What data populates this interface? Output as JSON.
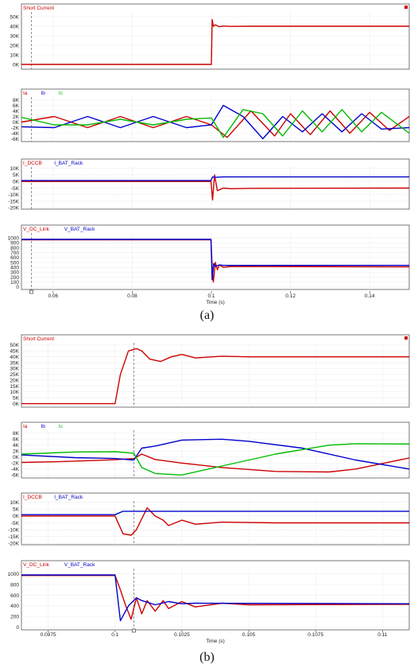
{
  "figures": [
    {
      "caption": "(a)",
      "xlim": [
        0.052,
        0.15
      ],
      "xticks": [
        0.06,
        0.08,
        0.1,
        0.12,
        0.14
      ],
      "xtick_labels": [
        "0.06",
        "0.08",
        "0.1",
        "0.12",
        "0.14"
      ],
      "xlabel": "Time (s)",
      "cursor_x": 0.0545,
      "event_x": 0.1,
      "panels": [
        {
          "id": "a1",
          "legend": [
            {
              "label": "Short Current",
              "color": "#cc0000"
            }
          ],
          "ylim": [
            -5000,
            55000
          ],
          "yticks": [
            0,
            10000,
            20000,
            30000,
            40000,
            50000
          ],
          "ytick_labels": [
            "0K",
            "10K",
            "20K",
            "30K",
            "40K",
            "50K"
          ],
          "marker": true
        },
        {
          "id": "a2",
          "legend": [
            {
              "label": "Ia",
              "color": "#cc0000"
            },
            {
              "label": "Ib",
              "color": "#0000cc"
            },
            {
              "label": "Ic",
              "color": "#00bb00"
            }
          ],
          "ylim": [
            -7000,
            9000
          ],
          "yticks": [
            -6000,
            -4000,
            -2000,
            0,
            2000,
            4000,
            6000,
            8000
          ],
          "ytick_labels": [
            "-6K",
            "-4K",
            "-2K",
            "0K",
            "2K",
            "4K",
            "6K",
            "8K"
          ],
          "marker": false
        },
        {
          "id": "a3",
          "legend": [
            {
              "label": "I_DCCB",
              "color": "#cc0000"
            },
            {
              "label": "I_BAT_Rack",
              "color": "#0000cc"
            }
          ],
          "ylim": [
            -21000,
            11000
          ],
          "yticks": [
            -20000,
            -15000,
            -10000,
            -5000,
            0,
            5000,
            10000
          ],
          "ytick_labels": [
            "-20K",
            "-15K",
            "-10K",
            "-5K",
            "0K",
            "5K",
            "10K"
          ],
          "marker": false
        },
        {
          "id": "a4",
          "legend": [
            {
              "label": "V_DC_Link",
              "color": "#cc0000"
            },
            {
              "label": "V_BAT_Rack",
              "color": "#0000cc"
            }
          ],
          "ylim": [
            -50,
            1100
          ],
          "yticks": [
            0,
            100,
            200,
            300,
            400,
            500,
            600,
            700,
            800,
            900,
            1000
          ],
          "ytick_labels": [
            "0",
            "100",
            "200",
            "300",
            "400",
            "500",
            "600",
            "700",
            "800",
            "900",
            "1000"
          ],
          "marker": false
        }
      ]
    },
    {
      "caption": "(b)",
      "xlim": [
        0.0965,
        0.111
      ],
      "xticks": [
        0.0975,
        0.1,
        0.1025,
        0.105,
        0.1075,
        0.11
      ],
      "xtick_labels": [
        "0.0975",
        "0.1",
        "0.1025",
        "0.105",
        "0.1075",
        "0.11"
      ],
      "xlabel": "Time (s)",
      "cursor_x": 0.1007,
      "event_x": 0.1,
      "panels": [
        {
          "id": "b1",
          "legend": [
            {
              "label": "Short Current",
              "color": "#cc0000"
            }
          ],
          "ylim": [
            -3000,
            52000
          ],
          "yticks": [
            0,
            5000,
            10000,
            15000,
            20000,
            25000,
            30000,
            35000,
            40000,
            45000,
            50000
          ],
          "ytick_labels": [
            "0K",
            "5K",
            "10K",
            "15K",
            "20K",
            "25K",
            "30K",
            "35K",
            "40K",
            "45K",
            "50K"
          ],
          "marker": true
        },
        {
          "id": "b2",
          "legend": [
            {
              "label": "Ia",
              "color": "#cc0000"
            },
            {
              "label": "Ib",
              "color": "#0000cc"
            },
            {
              "label": "Ic",
              "color": "#00bb00"
            }
          ],
          "ylim": [
            -7000,
            9000
          ],
          "yticks": [
            -6000,
            -4000,
            -2000,
            0,
            2000,
            4000,
            6000,
            8000
          ],
          "ytick_labels": [
            "-6K",
            "-4K",
            "-2K",
            "0K",
            "2K",
            "4K",
            "6K",
            "8K"
          ],
          "marker": false
        },
        {
          "id": "b3",
          "legend": [
            {
              "label": "I_DCCB",
              "color": "#cc0000"
            },
            {
              "label": "I_BAT_Rack",
              "color": "#0000cc"
            }
          ],
          "ylim": [
            -21000,
            11000
          ],
          "yticks": [
            -20000,
            -15000,
            -10000,
            -5000,
            0,
            5000,
            10000
          ],
          "ytick_labels": [
            "-20K",
            "-15K",
            "-10K",
            "-5K",
            "0K",
            "5K",
            "10K"
          ],
          "marker": false
        },
        {
          "id": "b4",
          "legend": [
            {
              "label": "V_DC_Link",
              "color": "#cc0000"
            },
            {
              "label": "V_BAT_Rack",
              "color": "#0000cc"
            }
          ],
          "ylim": [
            -50,
            1100
          ],
          "yticks": [
            0,
            200,
            400,
            600,
            800,
            1000
          ],
          "ytick_labels": [
            "0",
            "200",
            "400",
            "600",
            "800",
            "1000"
          ],
          "marker": false
        }
      ]
    }
  ],
  "chart_data": [
    {
      "type": "line",
      "title": "Short Current",
      "xlabel": "Time (s)",
      "ylabel": "",
      "xlim": [
        0.052,
        0.15
      ],
      "ylim": [
        -5000,
        55000
      ],
      "series": [
        {
          "name": "Short Current",
          "color": "#cc0000",
          "x": [
            0.052,
            0.0999,
            0.1,
            0.1002,
            0.1005,
            0.101,
            0.102,
            0.103,
            0.105,
            0.11,
            0.15
          ],
          "y": [
            0,
            0,
            0,
            47000,
            40000,
            41500,
            39500,
            40200,
            39800,
            40000,
            40000
          ]
        }
      ]
    },
    {
      "type": "line",
      "title": "",
      "xlabel": "Time (s)",
      "ylabel": "",
      "xlim": [
        0.052,
        0.15
      ],
      "ylim": [
        -7000,
        9000
      ],
      "series": [
        {
          "name": "Ia",
          "color": "#cc0000",
          "x": [
            0.052,
            0.0603,
            0.0687,
            0.077,
            0.0853,
            0.0937,
            0.1,
            0.104,
            0.11,
            0.116,
            0.12,
            0.125,
            0.13,
            0.135,
            0.14,
            0.145,
            0.15
          ],
          "y": [
            0,
            2000,
            -2000,
            2000,
            -2000,
            2000,
            -1000,
            -5500,
            4000,
            -5000,
            3000,
            -4500,
            4000,
            -4000,
            3500,
            -3000,
            2000
          ]
        },
        {
          "name": "Ib",
          "color": "#0000cc",
          "x": [
            0.052,
            0.0603,
            0.0687,
            0.077,
            0.0853,
            0.0937,
            0.1,
            0.103,
            0.108,
            0.113,
            0.118,
            0.123,
            0.128,
            0.133,
            0.138,
            0.143,
            0.15
          ],
          "y": [
            -1700,
            -2000,
            2000,
            -2000,
            2000,
            -2000,
            -1000,
            6000,
            2000,
            -6000,
            2000,
            -3500,
            3000,
            -3500,
            3000,
            -2500,
            -2000
          ]
        },
        {
          "name": "Ic",
          "color": "#00bb00",
          "x": [
            0.052,
            0.0603,
            0.0687,
            0.077,
            0.0853,
            0.0937,
            0.1,
            0.103,
            0.108,
            0.113,
            0.118,
            0.123,
            0.128,
            0.133,
            0.138,
            0.143,
            0.15
          ],
          "y": [
            1700,
            -1000,
            -1000,
            1000,
            -1000,
            1000,
            1500,
            -5500,
            4500,
            3000,
            -5000,
            4000,
            -3500,
            4500,
            -3500,
            3500,
            -4000
          ]
        }
      ]
    },
    {
      "type": "line",
      "title": "",
      "xlabel": "Time (s)",
      "ylabel": "",
      "xlim": [
        0.052,
        0.15
      ],
      "ylim": [
        -21000,
        11000
      ],
      "series": [
        {
          "name": "I_DCCB",
          "color": "#cc0000",
          "x": [
            0.052,
            0.0999,
            0.1003,
            0.1008,
            0.1015,
            0.103,
            0.105,
            0.11,
            0.15
          ],
          "y": [
            0,
            0,
            -14000,
            5000,
            -7000,
            -5000,
            -5500,
            -5200,
            -5000
          ]
        },
        {
          "name": "I_BAT_Rack",
          "color": "#0000cc",
          "x": [
            0.052,
            0.0999,
            0.1003,
            0.101,
            0.103,
            0.15
          ],
          "y": [
            700,
            700,
            3500,
            3200,
            3500,
            3500
          ]
        }
      ]
    },
    {
      "type": "line",
      "title": "",
      "xlabel": "Time (s)",
      "ylabel": "",
      "xlim": [
        0.052,
        0.15
      ],
      "ylim": [
        -50,
        1100
      ],
      "series": [
        {
          "name": "V_DC_Link",
          "color": "#cc0000",
          "x": [
            0.052,
            0.0999,
            0.1002,
            0.1005,
            0.101,
            0.1015,
            0.102,
            0.103,
            0.105,
            0.15
          ],
          "y": [
            960,
            960,
            400,
            100,
            500,
            350,
            450,
            400,
            420,
            410
          ]
        },
        {
          "name": "V_BAT_Rack",
          "color": "#0000cc",
          "x": [
            0.052,
            0.0999,
            0.1002,
            0.1006,
            0.101,
            0.102,
            0.103,
            0.15
          ],
          "y": [
            970,
            970,
            150,
            480,
            420,
            450,
            440,
            440
          ]
        }
      ]
    },
    {
      "type": "line",
      "title": "Short Current",
      "xlabel": "Time (s)",
      "ylabel": "",
      "xlim": [
        0.0965,
        0.111
      ],
      "ylim": [
        -3000,
        52000
      ],
      "series": [
        {
          "name": "Short Current",
          "color": "#cc0000",
          "x": [
            0.0965,
            0.1,
            0.1002,
            0.1005,
            0.1008,
            0.101,
            0.1013,
            0.1017,
            0.1021,
            0.1025,
            0.103,
            0.104,
            0.105,
            0.111
          ],
          "y": [
            0,
            0,
            25000,
            45000,
            47000,
            45000,
            38000,
            36000,
            40000,
            42000,
            39000,
            40500,
            40000,
            40000
          ]
        }
      ]
    },
    {
      "type": "line",
      "title": "",
      "xlabel": "Time (s)",
      "ylabel": "",
      "xlim": [
        0.0965,
        0.111
      ],
      "ylim": [
        -7000,
        9000
      ],
      "series": [
        {
          "name": "Ia",
          "color": "#cc0000",
          "x": [
            0.0965,
            0.098,
            0.099,
            0.1,
            0.1007,
            0.101,
            0.1015,
            0.1025,
            0.104,
            0.106,
            0.108,
            0.109,
            0.111
          ],
          "y": [
            -1800,
            -1500,
            -1200,
            -900,
            -500,
            1000,
            -800,
            -2000,
            -3500,
            -4800,
            -5000,
            -4000,
            -300
          ]
        },
        {
          "name": "Ib",
          "color": "#0000cc",
          "x": [
            0.0965,
            0.0985,
            0.1,
            0.1007,
            0.101,
            0.1015,
            0.1025,
            0.104,
            0.105,
            0.107,
            0.109,
            0.111
          ],
          "y": [
            700,
            -200,
            -500,
            -1000,
            3000,
            3700,
            5700,
            6000,
            5300,
            3000,
            -1000,
            -4000
          ]
        },
        {
          "name": "Ic",
          "color": "#00bb00",
          "x": [
            0.0965,
            0.0985,
            0.1,
            0.1007,
            0.101,
            0.1015,
            0.1025,
            0.104,
            0.106,
            0.108,
            0.109,
            0.111
          ],
          "y": [
            1000,
            1700,
            1800,
            1300,
            -3500,
            -5500,
            -6000,
            -3000,
            1000,
            4000,
            4500,
            4400
          ]
        }
      ]
    },
    {
      "type": "line",
      "title": "",
      "xlabel": "Time (s)",
      "ylabel": "",
      "xlim": [
        0.0965,
        0.111
      ],
      "ylim": [
        -21000,
        11000
      ],
      "series": [
        {
          "name": "I_DCCB",
          "color": "#cc0000",
          "x": [
            0.0965,
            0.1,
            0.1003,
            0.1006,
            0.1008,
            0.101,
            0.1012,
            0.1015,
            0.1018,
            0.102,
            0.1025,
            0.103,
            0.104,
            0.106,
            0.111
          ],
          "y": [
            0,
            0,
            -13000,
            -14000,
            -10000,
            -2000,
            6000,
            0,
            -3000,
            -7000,
            -3000,
            -6000,
            -4500,
            -5000,
            -5000
          ]
        },
        {
          "name": "I_BAT_Rack",
          "color": "#0000cc",
          "x": [
            0.0965,
            0.1,
            0.1003,
            0.101,
            0.111
          ],
          "y": [
            1000,
            1000,
            3500,
            3500,
            3500
          ]
        }
      ]
    },
    {
      "type": "line",
      "title": "",
      "xlabel": "Time (s)",
      "ylabel": "",
      "xlim": [
        0.0965,
        0.111
      ],
      "ylim": [
        -50,
        1100
      ],
      "series": [
        {
          "name": "V_DC_Link",
          "color": "#cc0000",
          "x": [
            0.0965,
            0.1,
            0.1002,
            0.1004,
            0.1006,
            0.1008,
            0.101,
            0.1012,
            0.1015,
            0.1018,
            0.102,
            0.1025,
            0.103,
            0.104,
            0.105,
            0.111
          ],
          "y": [
            970,
            970,
            700,
            400,
            150,
            550,
            250,
            500,
            300,
            500,
            350,
            480,
            380,
            450,
            420,
            430
          ]
        },
        {
          "name": "V_BAT_Rack",
          "color": "#0000cc",
          "x": [
            0.0965,
            0.1,
            0.1002,
            0.1005,
            0.1008,
            0.101,
            0.1015,
            0.102,
            0.1025,
            0.103,
            0.111
          ],
          "y": [
            980,
            980,
            120,
            400,
            550,
            500,
            420,
            480,
            440,
            450,
            440
          ]
        }
      ]
    }
  ]
}
